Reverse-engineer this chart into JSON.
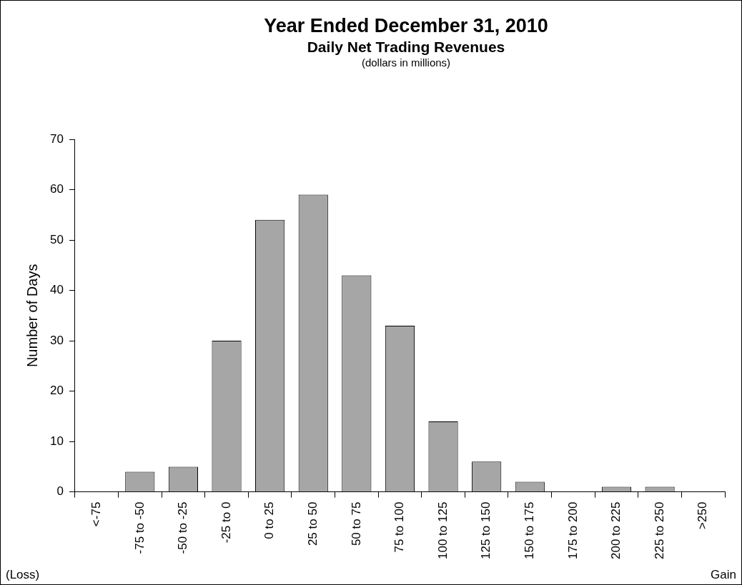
{
  "chart_data": {
    "type": "bar",
    "title": "Year Ended December 31, 2010",
    "subtitle": "Daily Net Trading Revenues",
    "ylabel": "Number of Days",
    "annotations": [
      "(dollars in millions)",
      "(Loss)",
      "Gain"
    ],
    "categories": [
      "<-75",
      "-75 to -50",
      "-50 to -25",
      "-25 to 0",
      "0 to 25",
      "25 to 50",
      "50 to 75",
      "75 to 100",
      "100 to 125",
      "125 to 150",
      "150 to 175",
      "175 to 200",
      "200 to 225",
      "225 to 250",
      ">250"
    ],
    "values": [
      0,
      4,
      5,
      30,
      54,
      59,
      43,
      33,
      14,
      6,
      2,
      0,
      1,
      1,
      0
    ],
    "color": "#a6a6a6",
    "ylim": [
      0,
      70
    ],
    "yticks": [
      0,
      10,
      20,
      30,
      40,
      50,
      60,
      70
    ],
    "grid": false,
    "legend": false
  }
}
